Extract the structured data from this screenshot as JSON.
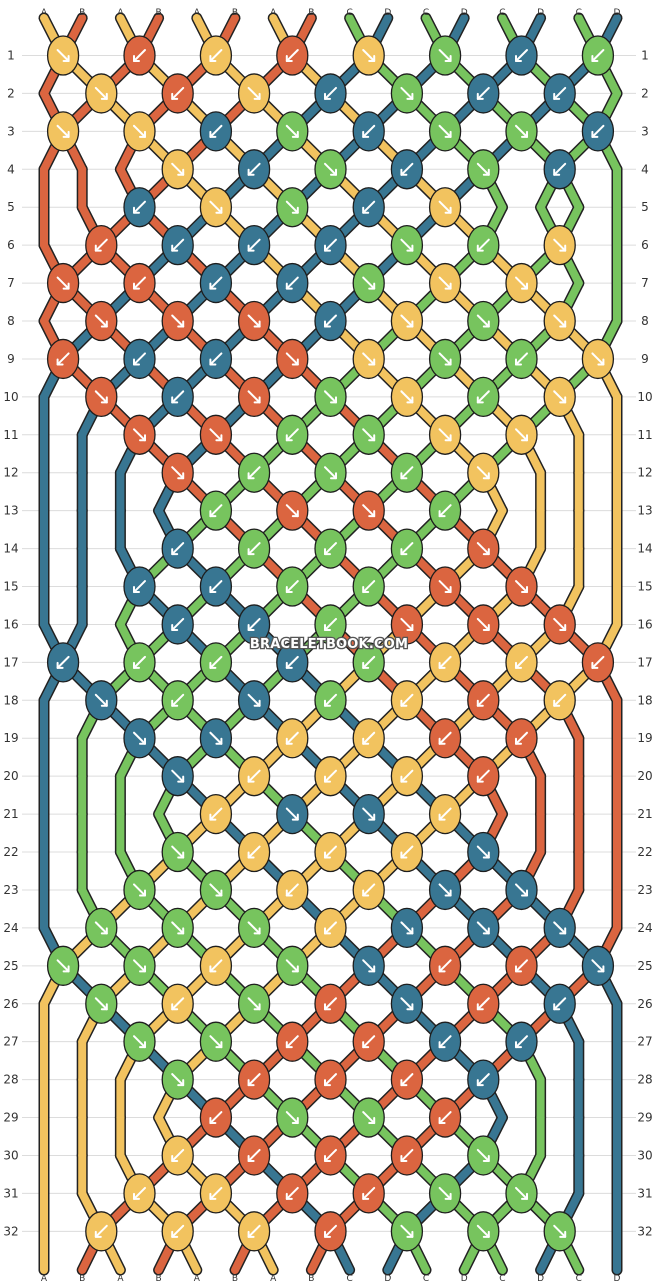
{
  "watermark": "BRACELETBOOK.COM",
  "colors": {
    "A": "#f2c35f",
    "B": "#db6540",
    "C": "#77c45e",
    "D": "#387692"
  },
  "strings_top": [
    "A",
    "B",
    "A",
    "B",
    "A",
    "B",
    "A",
    "B",
    "C",
    "D",
    "C",
    "D",
    "C",
    "D",
    "C",
    "D"
  ],
  "strings_bottom": [
    "A",
    "B",
    "A",
    "B",
    "A",
    "B",
    "A",
    "B",
    "C",
    "D",
    "C",
    "D",
    "C",
    "D",
    "C",
    "D"
  ],
  "row_numbers": [
    "1",
    "2",
    "3",
    "4",
    "5",
    "6",
    "7",
    "8",
    "9",
    "10",
    "11",
    "12",
    "13",
    "14",
    "15",
    "16",
    "17",
    "18",
    "19",
    "20",
    "21",
    "22",
    "23",
    "24",
    "25",
    "26",
    "27",
    "28",
    "29",
    "30",
    "31",
    "32"
  ],
  "rows": [
    "A>B<A<B<A>C>D<C<D<C>",
    "A>B<A>D<C>D<D<C<",
    "A>A>D<C>D<C>C>D<C<",
    "A>D<C>D<C>D<",
    "D<A>C>D<A>",
    "B<D<D<D<C>C<A>",
    "B>B<D<D<C>A>A>",
    "B>B>B>D<A>C>A>C>",
    "B<D<D<B>A>C>C<A>",
    "B>D<B>C>A>C<A>",
    "B>B>C<C>A>A>",
    "B>C<C>C<A>",
    "C<B>B>C<",
    "D<C<C<C<B>",
    "D<D<C<C<B>B>",
    "D<D<C<B>B>B>",
    "D<C<C<D<C<A<A<B<",
    "D>C<D>C<A<B<A<",
    "D>D>A<A<B<B<",
    "D>A<A<A<B<",
    "A<D>D>A<",
    "C>A<A<A<D>",
    "C>C>A<A<D>D>",
    "C>C>C>A<D>D>D>",
    "C>C>A<C>D>B<B<D>",
    "C>A<C>B<D>B<D<",
    "C>C>B<B<D<D<",
    "C>B<B<B<D<",
    "B<C>C>B<",
    "A<B<B<B<C>",
    "A<A<B<B<C>C>",
    "A<A<A<B<C>C>C>"
  ]
}
